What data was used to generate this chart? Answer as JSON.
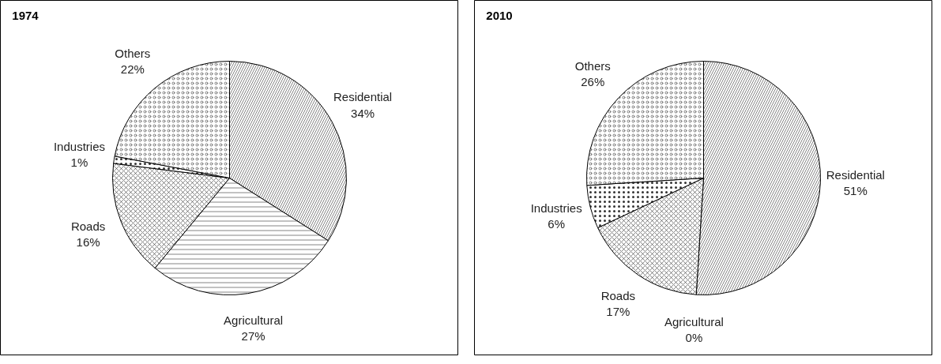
{
  "chart_data": [
    {
      "type": "pie",
      "title": "1974",
      "categories": [
        "Residential",
        "Agricultural",
        "Roads",
        "Industries",
        "Others"
      ],
      "values": [
        34,
        27,
        16,
        1,
        22
      ],
      "colors": [
        "#ffffff",
        "#ffffff",
        "#ffffff",
        "#ffffff",
        "#ffffff"
      ],
      "value_labels": [
        "34%",
        "27%",
        "16%",
        "1%",
        "22%"
      ]
    },
    {
      "type": "pie",
      "title": "2010",
      "categories": [
        "Residential",
        "Agricultural",
        "Roads",
        "Industries",
        "Others"
      ],
      "values": [
        51,
        0,
        17,
        6,
        26
      ],
      "colors": [
        "#ffffff",
        "#ffffff",
        "#ffffff",
        "#ffffff",
        "#ffffff"
      ],
      "value_labels": [
        "51%",
        "0%",
        "17%",
        "6%",
        "26%"
      ]
    }
  ]
}
